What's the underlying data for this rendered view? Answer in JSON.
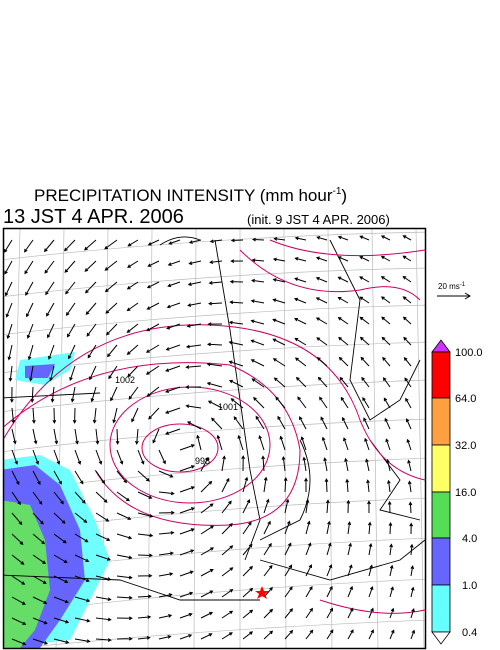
{
  "header": {
    "title": "PRECIPITATION INTENSITY (mm hour",
    "title_exponent": "-1",
    "title_close": ")",
    "valid_time": "13 JST 4 APR. 2006",
    "init_time": "(init. 9 JST 4 APR. 2006)"
  },
  "vector_scale": {
    "label": "20 ms",
    "exponent": "-1"
  },
  "colorbar": {
    "labels": [
      "100.0",
      "64.0",
      "32.0",
      "16.0",
      "4.0",
      "1.0",
      "0.4"
    ]
  },
  "contour_labels": [
    "1002",
    "1001",
    "998"
  ]
}
